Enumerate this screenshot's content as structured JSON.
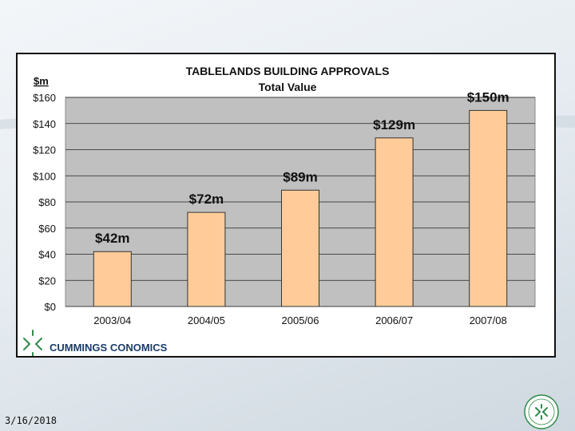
{
  "footer": {
    "date": "3/16/2018"
  },
  "brand": {
    "name": "CUMMINGS CONOMICS"
  },
  "colors": {
    "bar_fill": "#ffcc99",
    "bar_stroke": "#333333",
    "plot_bg": "#c0c0c0",
    "brand_green": "#2f8a4a"
  },
  "chart_data": {
    "type": "bar",
    "title": "TABLELANDS BUILDING APPROVALS",
    "subtitle": "Total Value",
    "unit_label": "$m",
    "categories": [
      "2003/04",
      "2004/05",
      "2005/06",
      "2006/07",
      "2007/08"
    ],
    "values": [
      42,
      72,
      89,
      129,
      150
    ],
    "data_labels": [
      "$42m",
      "$72m",
      "$89m",
      "$129m",
      "$150m"
    ],
    "ylim": [
      0,
      160
    ],
    "yticks": [
      0,
      20,
      40,
      60,
      80,
      100,
      120,
      140,
      160
    ],
    "ytick_labels": [
      "$0",
      "$20",
      "$40",
      "$60",
      "$80",
      "$100",
      "$120",
      "$140",
      "$160"
    ],
    "grid": true,
    "legend": false
  }
}
